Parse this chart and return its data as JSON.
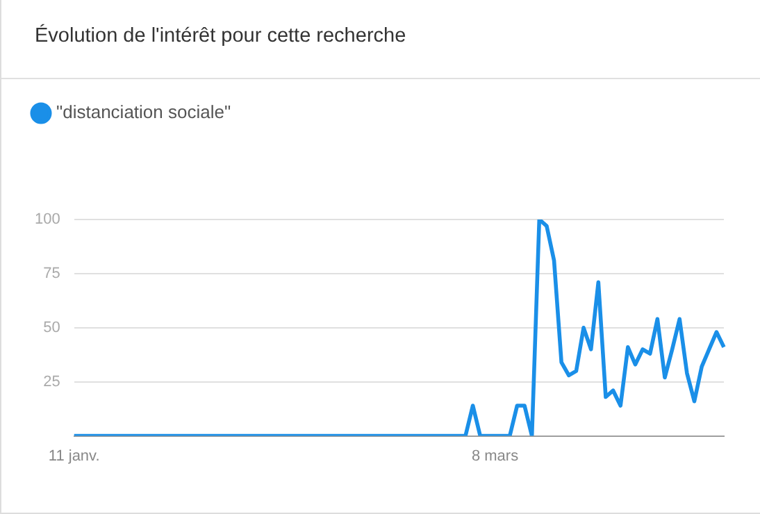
{
  "chart_data": {
    "type": "line",
    "title": "Évolution de l'intérêt pour cette recherche",
    "categories": [
      "11 janv.",
      null,
      null,
      null,
      null,
      null,
      null,
      null,
      null,
      null,
      null,
      null,
      null,
      null,
      null,
      null,
      null,
      null,
      null,
      null,
      null,
      null,
      null,
      null,
      null,
      null,
      null,
      null,
      null,
      null,
      null,
      null,
      null,
      null,
      null,
      null,
      null,
      null,
      null,
      null,
      null,
      null,
      null,
      null,
      null,
      null,
      null,
      null,
      null,
      null,
      null,
      null,
      null,
      null,
      null,
      null,
      null,
      "8 mars",
      null,
      null,
      null,
      null,
      null,
      null,
      null,
      null,
      null,
      null,
      null,
      null,
      null,
      null,
      null,
      null,
      null,
      null,
      null,
      null,
      null,
      null,
      null,
      null,
      null,
      null,
      null,
      null,
      null,
      null,
      null
    ],
    "series": [
      {
        "name": "\"distanciation sociale\"",
        "color": "#1a8fe8",
        "values": [
          0,
          0,
          0,
          0,
          0,
          0,
          0,
          0,
          0,
          0,
          0,
          0,
          0,
          0,
          0,
          0,
          0,
          0,
          0,
          0,
          0,
          0,
          0,
          0,
          0,
          0,
          0,
          0,
          0,
          0,
          0,
          0,
          0,
          0,
          0,
          0,
          0,
          0,
          0,
          0,
          0,
          0,
          0,
          0,
          0,
          0,
          0,
          0,
          0,
          0,
          0,
          0,
          0,
          0,
          14,
          0,
          0,
          0,
          0,
          0,
          14,
          14,
          0,
          100,
          97,
          81,
          34,
          28,
          30,
          50,
          40,
          71,
          18,
          21,
          14,
          41,
          33,
          40,
          38,
          54,
          27,
          40,
          54,
          29,
          16,
          32,
          40,
          48,
          41
        ]
      }
    ],
    "ylim": [
      0,
      100
    ],
    "yticks": [
      25,
      50,
      75,
      100
    ],
    "grid": "y",
    "legend": "top left"
  }
}
